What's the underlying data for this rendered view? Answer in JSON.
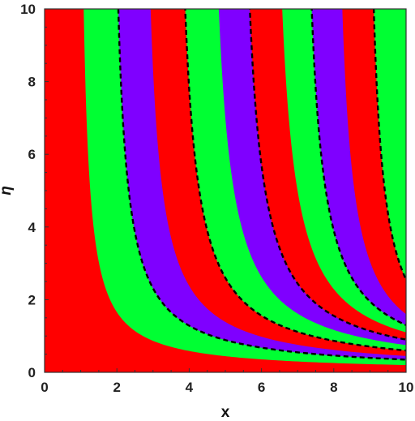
{
  "chart_data": {
    "type": "heatmap",
    "title": "",
    "xlabel": "x",
    "ylabel": "η",
    "xlim": [
      0,
      10
    ],
    "ylim": [
      0,
      10
    ],
    "x_ticks": [
      "0",
      "2",
      "4",
      "6",
      "8",
      "10"
    ],
    "y_ticks": [
      "0",
      "2",
      "4",
      "6",
      "8",
      "10"
    ],
    "grid": false,
    "legend": "none",
    "region_colors": {
      "red": "#ff0000",
      "green": "#00ff33",
      "purple": "#7f00ff"
    },
    "bands": [
      {
        "name": "band-1",
        "color": "red",
        "x_asymptote": 0.9,
        "eta_at_x10": 0.2
      },
      {
        "name": "band-2",
        "color": "green",
        "x_asymptote": 1.75,
        "eta_at_x10": 0.35
      },
      {
        "name": "band-3",
        "color": "purple",
        "x_asymptote": 2.6,
        "eta_at_x10": 0.45
      },
      {
        "name": "band-4",
        "color": "red",
        "x_asymptote": 3.5,
        "eta_at_x10": 0.6
      },
      {
        "name": "band-5",
        "color": "green",
        "x_asymptote": 4.4,
        "eta_at_x10": 0.75
      },
      {
        "name": "band-6",
        "color": "purple",
        "x_asymptote": 5.25,
        "eta_at_x10": 0.9
      },
      {
        "name": "band-7",
        "color": "red",
        "x_asymptote": 6.15,
        "eta_at_x10": 1.1
      },
      {
        "name": "band-8",
        "color": "green",
        "x_asymptote": 7.0,
        "eta_at_x10": 1.3
      },
      {
        "name": "band-9",
        "color": "purple",
        "x_asymptote": 7.9,
        "eta_at_x10": 1.6
      },
      {
        "name": "band-10",
        "color": "red",
        "x_asymptote": 8.8,
        "eta_at_x10": 2.55
      },
      {
        "name": "band-11",
        "color": "green",
        "x_asymptote": 10.0,
        "eta_at_x10": 10.0
      }
    ],
    "dashed_boundaries": [
      {
        "x_asymptote": 1.75,
        "eta_at_x10": 0.35
      },
      {
        "x_asymptote": 3.5,
        "eta_at_x10": 0.6
      },
      {
        "x_asymptote": 5.25,
        "eta_at_x10": 0.9
      },
      {
        "x_asymptote": 7.0,
        "eta_at_x10": 1.3
      },
      {
        "x_asymptote": 8.8,
        "eta_at_x10": 2.55
      }
    ]
  }
}
